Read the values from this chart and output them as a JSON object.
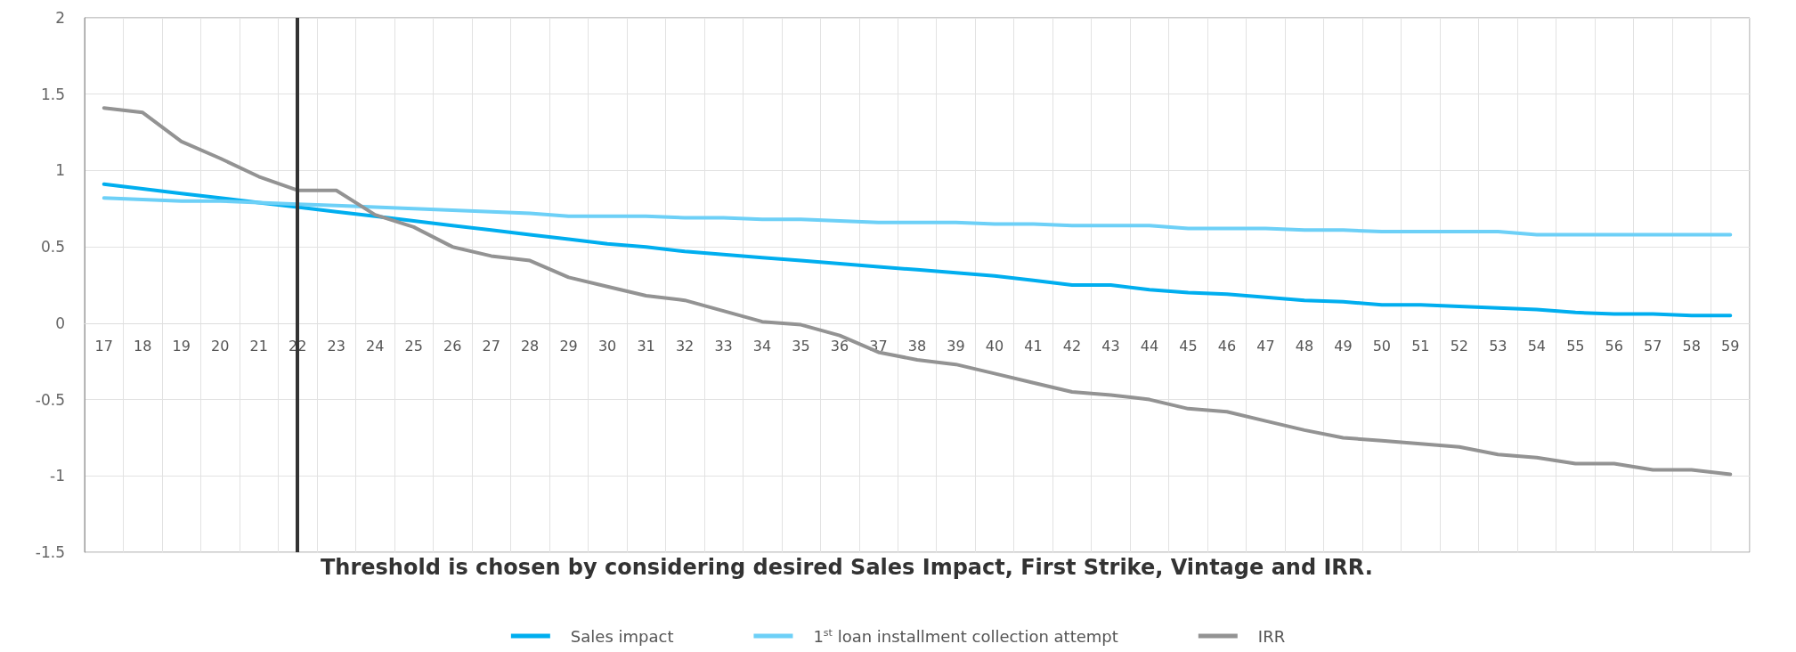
{
  "chart_data": {
    "type": "line",
    "categories": [
      "17",
      "18",
      "19",
      "20",
      "21",
      "22",
      "23",
      "24",
      "25",
      "26",
      "27",
      "28",
      "29",
      "30",
      "31",
      "32",
      "33",
      "34",
      "35",
      "36",
      "37",
      "38",
      "39",
      "40",
      "41",
      "42",
      "43",
      "44",
      "45",
      "46",
      "47",
      "48",
      "49",
      "50",
      "51",
      "52",
      "53",
      "54",
      "55",
      "56",
      "57",
      "58",
      "59"
    ],
    "series": [
      {
        "name": "Sales impact",
        "color": "#00aeef",
        "values": [
          0.91,
          0.88,
          0.85,
          0.82,
          0.79,
          0.76,
          0.73,
          0.7,
          0.67,
          0.64,
          0.61,
          0.58,
          0.55,
          0.52,
          0.5,
          0.47,
          0.45,
          0.43,
          0.41,
          0.39,
          0.37,
          0.35,
          0.33,
          0.31,
          0.28,
          0.25,
          0.25,
          0.22,
          0.2,
          0.19,
          0.17,
          0.15,
          0.14,
          0.12,
          0.12,
          0.11,
          0.1,
          0.09,
          0.07,
          0.06,
          0.06,
          0.05,
          0.05
        ]
      },
      {
        "name": "1$^{st}$ loan installment collection attempt",
        "color": "#6dd0f7",
        "values": [
          0.82,
          0.81,
          0.8,
          0.8,
          0.79,
          0.78,
          0.77,
          0.76,
          0.75,
          0.74,
          0.73,
          0.72,
          0.7,
          0.7,
          0.7,
          0.69,
          0.69,
          0.68,
          0.68,
          0.67,
          0.66,
          0.66,
          0.66,
          0.65,
          0.65,
          0.64,
          0.64,
          0.64,
          0.62,
          0.62,
          0.62,
          0.61,
          0.61,
          0.6,
          0.6,
          0.6,
          0.6,
          0.58,
          0.58,
          0.58,
          0.58,
          0.58,
          0.58
        ]
      },
      {
        "name": "IRR",
        "color": "#939393",
        "values": [
          1.41,
          1.38,
          1.19,
          1.08,
          0.96,
          0.87,
          0.87,
          0.71,
          0.63,
          0.5,
          0.44,
          0.41,
          0.3,
          0.24,
          0.18,
          0.15,
          0.08,
          0.01,
          -0.01,
          -0.08,
          -0.19,
          -0.24,
          -0.27,
          -0.33,
          -0.39,
          -0.45,
          -0.47,
          -0.5,
          -0.56,
          -0.58,
          -0.64,
          -0.7,
          -0.75,
          -0.77,
          -0.79,
          -0.81,
          -0.86,
          -0.88,
          -0.92,
          -0.92,
          -0.96,
          -0.96,
          -0.99
        ]
      }
    ],
    "ylim": [
      -1.5,
      2
    ],
    "yticks": [
      -1.5,
      -1,
      -0.5,
      0,
      0.5,
      1,
      1.5,
      2
    ],
    "ref_lines": [
      {
        "axis": "x",
        "value": "22",
        "color": "#333333"
      }
    ],
    "annotations": [
      "Threshold is chosen by considering desired Sales Impact, First Strike, Vintage and IRR."
    ],
    "grid": true,
    "legend": "bottom",
    "marker": "none",
    "line_style": "solid"
  }
}
